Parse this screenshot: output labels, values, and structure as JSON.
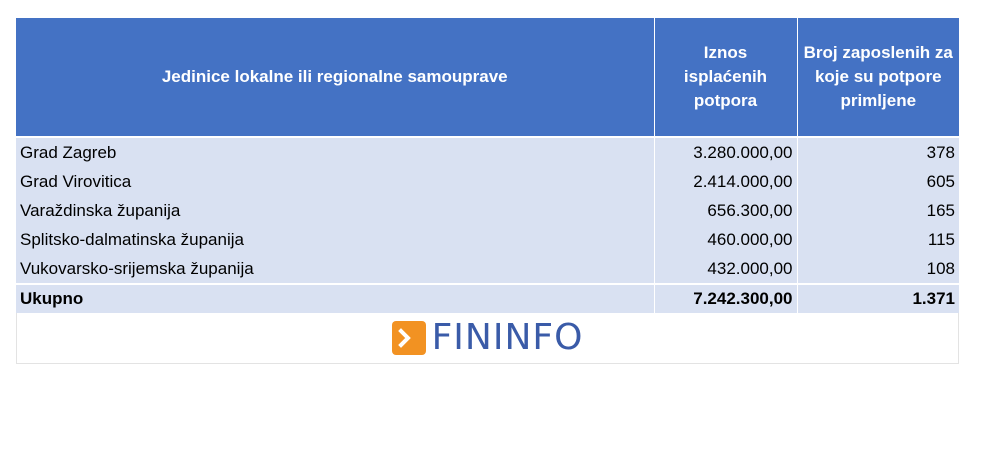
{
  "table": {
    "headers": [
      "Jedinice lokalne ili regionalne samouprave",
      "Iznos isplaćenih potpora",
      "Broj zaposlenih za koje su potpore primljene"
    ],
    "rows": [
      {
        "name": "Grad Zagreb",
        "amount": "3.280.000,00",
        "employees": "378"
      },
      {
        "name": "Grad Virovitica",
        "amount": "2.414.000,00",
        "employees": "605"
      },
      {
        "name": "Varaždinska županija",
        "amount": "656.300,00",
        "employees": "165"
      },
      {
        "name": "Splitsko-dalmatinska županija",
        "amount": "460.000,00",
        "employees": "115"
      },
      {
        "name": "Vukovarsko-srijemska županija",
        "amount": "432.000,00",
        "employees": "108"
      }
    ],
    "total": {
      "label": "Ukupno",
      "amount": "7.242.300,00",
      "employees": "1.371"
    }
  },
  "logo": {
    "text": "FININFO",
    "icon": "orange-arrow-logo-icon",
    "colors": {
      "mark": "#f29222",
      "text": "#3a5ba8"
    }
  },
  "colors": {
    "header_bg": "#4472c4",
    "row_bg": "#d9e1f2"
  }
}
